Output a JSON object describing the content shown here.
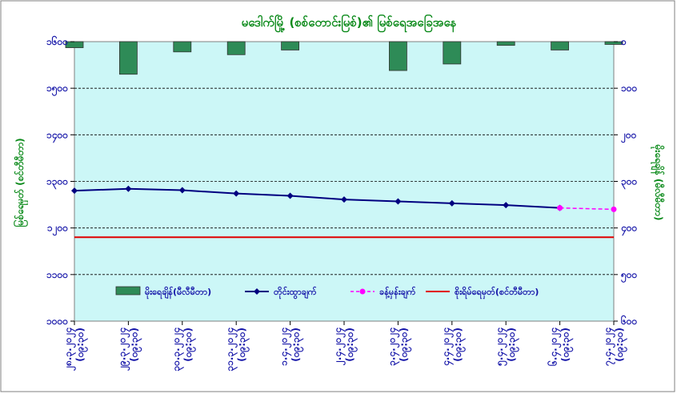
{
  "chart_data": {
    "type": "line",
    "title": "မဒေါက်မြို့ (စစ်တောင်းမြစ်)၏ မြစ်ရေအခြေအနေ",
    "ylabel_left": "မြစ်ရေမှတ် (စင်တီမီတာ)",
    "ylabel_right": "မိုးရေချိန် (မီလီမီတာ)",
    "yticks_left": [
      "၁၆၀၀",
      "၁၅၀၀",
      "၁၄၀၀",
      "၁၃၀၀",
      "၁၂၀၀",
      "၁၁၀၀",
      "၁၀၀၀"
    ],
    "yticks_right": [
      "၀",
      "၁၀၀",
      "၂၀၀",
      "၃၀၀",
      "၄၀၀",
      "၅၀၀",
      "၆၀၀"
    ],
    "ylim_left": [
      1000,
      1600
    ],
    "ylim_right": [
      0,
      600
    ],
    "categories": [
      [
        "၂၈.၃.၂၀၂၄",
        "(၀၉:၃၀)"
      ],
      [
        "၂၉.၃.၂၀၂၄",
        "(၀၉:၃၀)"
      ],
      [
        "၃၀.၃.၂၀၂၄",
        "(၀၉:၃၀)"
      ],
      [
        "၃၁.၃.၂၀၂၄",
        "(၀၉:၃၀)"
      ],
      [
        "၁.၄.၂၀၂၄",
        "(၀၉:၃၀)"
      ],
      [
        "၂.၄.၂၀၂၄",
        "(၀၉:၃၀)"
      ],
      [
        "၃.၄.၂၀၂၄",
        "(၀၉:၃၀)"
      ],
      [
        "၄.၄.၂၀၂၄",
        "(၀၉:၃၀)"
      ],
      [
        "၅.၄.၂၀၂၄",
        "(၀၉:၃၀)"
      ],
      [
        "၆.၄.၂၀၂၄",
        "(၀၉:၃၀)"
      ],
      [
        "၇.၄.၂၀၂၄",
        "(၀၉:၃၀)"
      ]
    ],
    "series": [
      {
        "name": "မိုးရေချိန်(မီလီမီတာ)",
        "kind": "bar",
        "axis": "right",
        "color": "#2e8b57",
        "values": [
          13,
          70,
          22,
          28,
          18,
          0,
          62,
          48,
          8,
          18,
          6
        ]
      },
      {
        "name": "တိုင်းထွာချက်",
        "kind": "line",
        "axis": "left",
        "color": "#000080",
        "values": [
          1280,
          1284,
          1281,
          1274,
          1269,
          1261,
          1257,
          1253,
          1249,
          1243,
          null
        ]
      },
      {
        "name": "ခန့်မှန်းချက်",
        "kind": "dashed-line",
        "axis": "left",
        "color": "#ff00ff",
        "values": [
          null,
          null,
          null,
          null,
          null,
          null,
          null,
          null,
          null,
          1243,
          1240
        ]
      },
      {
        "name": "စိုးရိမ်ရေမှတ်(စင်တီမီတာ)",
        "kind": "hline",
        "axis": "left",
        "color": "#e00000",
        "value": 1180
      }
    ],
    "grid": true,
    "legend_position": "inside-bottom",
    "plot_background": "#ccf7f7"
  }
}
